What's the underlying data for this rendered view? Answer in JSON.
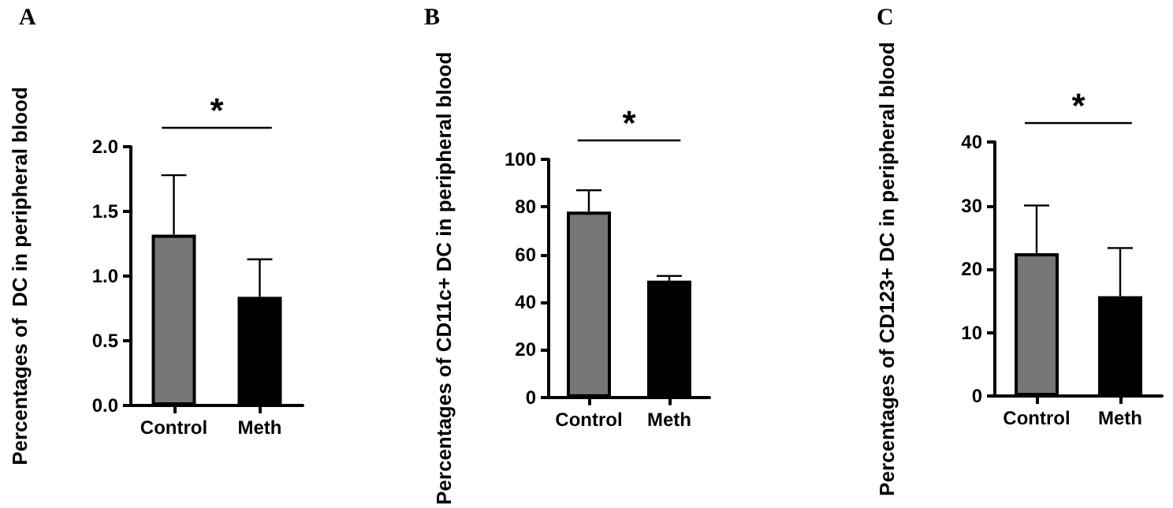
{
  "chart_data": [
    {
      "type": "bar",
      "title": "A",
      "ylabel": "Percentages of  DC in peripheral blood",
      "categories": [
        "Control",
        "Meth"
      ],
      "colors": [
        "#777777",
        "#000000"
      ],
      "values": [
        1.32,
        0.84
      ],
      "errors": [
        [
          1.32,
          1.78
        ],
        [
          0.84,
          1.13
        ]
      ],
      "ylim": [
        0,
        2
      ],
      "yticks": [
        {
          "value": 0,
          "label": "0.0"
        },
        {
          "value": 0.5,
          "label": "0.5"
        },
        {
          "value": 1,
          "label": "1.0"
        },
        {
          "value": 1.5,
          "label": "1.5"
        },
        {
          "value": 2,
          "label": "2.0"
        }
      ],
      "annotations": [
        "*"
      ],
      "grid": false
    },
    {
      "type": "bar",
      "title": "B",
      "ylabel": "Percentages of CD11c+ DC in peripheral blood",
      "categories": [
        "Control",
        "Meth"
      ],
      "colors": [
        "#777777",
        "#000000"
      ],
      "values": [
        78,
        49
      ],
      "errors": [
        [
          78,
          87
        ],
        [
          49,
          51
        ]
      ],
      "ylim": [
        0,
        100
      ],
      "yticks": [
        0,
        20,
        40,
        60,
        80,
        100
      ],
      "annotations": [
        "*"
      ],
      "grid": false
    },
    {
      "type": "bar",
      "title": "C",
      "ylabel": "Percentages of CD123+ DC in peripheral blood",
      "categories": [
        "Control",
        "Meth"
      ],
      "colors": [
        "#777777",
        "#000000"
      ],
      "values": [
        22.5,
        15.7
      ],
      "errors": [
        [
          22.5,
          30
        ],
        [
          15.7,
          23.3
        ]
      ],
      "ylim": [
        0,
        40
      ],
      "yticks": [
        0,
        10,
        20,
        30,
        40
      ],
      "annotations": [
        "*"
      ],
      "grid": false
    }
  ]
}
